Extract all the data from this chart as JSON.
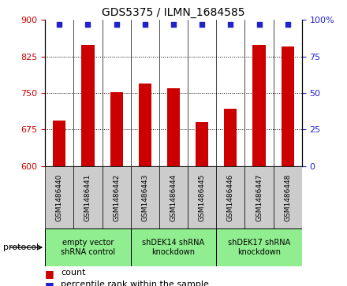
{
  "title": "GDS5375 / ILMN_1684585",
  "samples": [
    "GSM1486440",
    "GSM1486441",
    "GSM1486442",
    "GSM1486443",
    "GSM1486444",
    "GSM1486445",
    "GSM1486446",
    "GSM1486447",
    "GSM1486448"
  ],
  "counts": [
    693,
    848,
    752,
    769,
    760,
    690,
    718,
    848,
    845
  ],
  "percentiles": [
    97,
    97,
    97,
    97,
    97,
    97,
    97,
    97,
    97
  ],
  "ylim_left": [
    600,
    900
  ],
  "ylim_right": [
    0,
    100
  ],
  "yticks_left": [
    600,
    675,
    750,
    825,
    900
  ],
  "yticks_right": [
    0,
    25,
    50,
    75,
    100
  ],
  "bar_color": "#CC0000",
  "dot_color": "#2222CC",
  "bar_width": 0.45,
  "groups": [
    {
      "label": "empty vector\nshRNA control",
      "start": 0,
      "end": 3,
      "color": "#90EE90"
    },
    {
      "label": "shDEK14 shRNA\nknockdown",
      "start": 3,
      "end": 6,
      "color": "#90EE90"
    },
    {
      "label": "shDEK17 shRNA\nknockdown",
      "start": 6,
      "end": 9,
      "color": "#90EE90"
    }
  ],
  "protocol_label": "protocol",
  "legend_count_label": "count",
  "legend_pct_label": "percentile rank within the sample",
  "fig_width": 4.4,
  "fig_height": 3.63,
  "dpi": 100
}
